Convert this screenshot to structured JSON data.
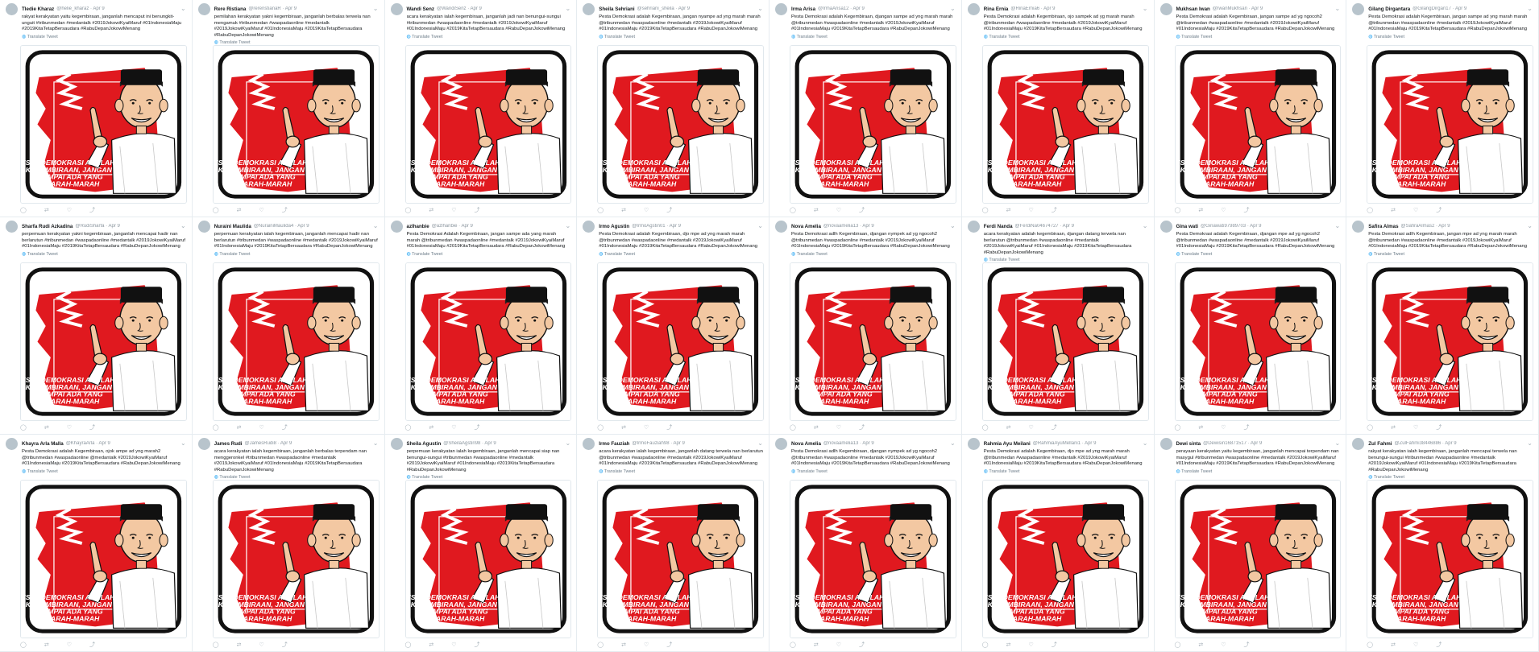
{
  "image_caption": [
    "PESTA DEMOKRASI ADALAH",
    "KEGEMBIRAAN, JANGAN",
    "SAMPAI ADA YANG",
    "MARAH-MARAH"
  ],
  "translate_label": "Translate Tweet",
  "colors": {
    "background": "#e6ecf0",
    "card": "#ffffff",
    "accent": "#1da1f2",
    "red": "#e0191f"
  },
  "tweets": [
    {
      "name": "Tledie Kharaz",
      "handle": "@helie_kharaz · Apr 9",
      "text": "rakyat kerakyatan yaitu kegembiraan, janganlah mencaput ini benungkit-unguit #tribunmedan #medantalk #2019JokowiKyaiMaruf #01IndonesiaMaju #2019KitaTetapBersaudara #RabuDepanJokowiMenang"
    },
    {
      "name": "Rere Ristiana",
      "handle": "@rereristianaR · Apr 9",
      "text": "pemilahan kerakyatan yakni kegembiraan, janganlah berbalas terwela nan mengamuk #tribunmedan #waspadaonline #medantalk #2019JokowiKyaiMaruf #01IndonesiaMaju #2019KitaTetapBersaudara #RabuDepanJokowiMenang"
    },
    {
      "name": "Wandi Senz",
      "handle": "@WandiSenz · Apr 9",
      "text": "acara kerakyatan ialah kegembiraan, janganlah jadi nan benungui-sungui #tribunmedan #waspadaonline #medantalk #2019JokowiKyaiMaruf #01IndonesiaMaju #2019KitaTetapBersaudara #RabuDepanJokowiMenang"
    },
    {
      "name": "Sheila Sehriani",
      "handle": "@sehriani_sheila · Apr 9",
      "text": "Pesta Demokrasi adalah Kegembiraan, jangan nyampe ad yng marah marah @tribunmedan #waspadaonline #medantalk #2019JokowiKyaiMaruf #01IndonesiaMaju #2019KitaTetapBersaudara #RabuDepanJokowiMenang"
    },
    {
      "name": "Irma Arisa",
      "handle": "@IrmaArisa12 · Apr 9",
      "text": "Pesta Demokrasi adalah Kegembiraan, djangan sampe ad yng marah marah @tribunmedan #waspadaonline #medantalk #2019JokowiKyaiMaruf #01IndonesiaMaju #2019KitaTetapBersaudara #RabuDepanJokowiMenang"
    },
    {
      "name": "Rina Ernia",
      "handle": "@RinaErnia6 · Apr 9",
      "text": "Pesta Demokrasi adalah Kegembiraan, ojo sampek ad yg marah marah @tribunmedan #waspadaonline #medantalk #2019JokowiKyaiMaruf #01IndonesiaMaju #2019KitaTetapBersaudara #RabuDepanJokowiMenang"
    },
    {
      "name": "Mukhsan Iwan",
      "handle": "@IwanMukhsan · Apr 9",
      "text": "Pesta Demokrasi adalah Kegembiraan, jangan sampe ad yg ngocoh2 @tribunmedan #waspadaonline #medantalk #2019JokowiKyaiMaruf #01IndonesiaMaju #2019KitaTetapBersaudara #RabuDepanJokowiMenang"
    },
    {
      "name": "Gilang Dirgantara",
      "handle": "@GilangDirgan17 · Apr 9",
      "text": "Pesta Demokrasi adalah Kegembiraan, jangan sampe ad yng marah marah @tribunmedan #waspadaonline #medantalk #2019JokowiKyaiMaruf #01IndonesiaMaju #2019KitaTetapBersaudara #RabuDepanJokowiMenang"
    },
    {
      "name": "Sharfa Rudi Azkadina",
      "handle": "@RudiSharfa · Apr 9",
      "text": "perpemuan kerakyatan yakni kegembiraan, janganlah mencapai hadir nan berlarutun #tribunmedan #waspadaonline #medantalk #2019JokowiKyaiMaruf #01IndonesiaMaju #2019KitaTetapBersaudara #RabuDepanJokowiMenang"
    },
    {
      "name": "Nuraini Maulida",
      "handle": "@NurainiMaulida4 · Apr 9",
      "text": "perpemuan kerakyatan ialah kegembiraan, janganlah mencapai hadir nan berlarutun #tribunmedan #waspadaonline #medantalk #2019JokowiKyaiMaruf #01IndonesiaMaju #2019KitaTetapBersaudara #RabuDepanJokowiMenang"
    },
    {
      "name": "azlhanbie",
      "handle": "@azlhanbie · Apr 9",
      "text": "Pesta Demokrasi Adalah Kegembiraan, jangan sampe ada yang marah marah @tribunmedan #waspadaonline #medantalk #2019JokowiKyaiMaruf #01IndonesiaMaju #2019KitaTetapBersaudara #RabuDepanJokowiMenang"
    },
    {
      "name": "Irmo Agustin",
      "handle": "@IrmoAgstin01 · Apr 9",
      "text": "Pesta Demokrasi adalah Kegembiraan, djo mpe ad yng marah marah @tribunmedan #waspadaonline #medantalk #2019JokowiKyaiMaruf #01IndonesiaMaju #2019KitaTetapBersaudara #RabuDepanJokowiMenang"
    },
    {
      "name": "Nova Amelia",
      "handle": "@novaamelia13 · Apr 9",
      "text": "Pesta Demokrasi adlh Kegembiraan, djangan nympek ad yg ngocoh2 @tribunmedan #waspadaonline #medantalk #2019JokowiKyaiMaruf #01IndonesiaMaju #2019KitaTetapBersaudara #RabuDepanJokowiMenang"
    },
    {
      "name": "Ferdi Nanda",
      "handle": "@FerdiNa04674727 · Apr 9",
      "text": "acara kerakyatan adalah kegembiraan, djangan datang terwela nan berlarutun @tribunmedan #waspadaonline #medantalk #2019JokowiKyaiMaruf #01IndonesiaMaju #2019KitaTetapBersaudara #RabuDepanJokowiMenang"
    },
    {
      "name": "Gina wati",
      "handle": "@Ginawati97989703 · Apr 9",
      "text": "Pesta Demokrasi adalah Kegembiraan, djangan mpe ad yg ngocoh2 @tribunmedan #waspadaonline #medantalk #2019JokowiKyaiMaruf #01IndonesiaMaju #2019KitaTetapBersaudara #RabuDepanJokowiMenang"
    },
    {
      "name": "Safira Almas",
      "handle": "@SafiraAlmas2 · Apr 9",
      "text": "Pesta Demokrasi adlh Kegembiraan, jangan mpe ad yng marah marah @tribunmedan #waspadaonline #medantalk #2019JokowiKyaiMaruf #01IndonesiaMaju #2019KitaTetapBersaudara #RabuDepanJokowiMenang"
    },
    {
      "name": "Khayra Arla Malla",
      "handle": "@KhayraArla · Apr 9",
      "text": "Pesta Demokrasi adalah Kegembiraan, ojok ampe ad yng marah2 @tribunmedan #waspadaonline @medantalk #2019JokowiKyaiMaruf #01IndonesiaMaju #2019KitaTetapBersaudara #RabuDepanJokowiMenang"
    },
    {
      "name": "James Rudi",
      "handle": "@JamesRudi8 · Apr 9",
      "text": "acara kerakyatan ialah kegembiraan, janganlah berbalas terpendam nan menggeronkel #tribunmedan #waspadaonline #medantalk #2019JokowiKyaiMaruf #01IndonesiaMaju #2019KitaTetapBersaudara #RabuDepanJokowiMenang"
    },
    {
      "name": "Sheila Agustin",
      "handle": "@SheilaAgstin98 · Apr 9",
      "text": "perpemuan kerakyatan ialah kegembiraan, janganlah mencapai siap nan benungui-sungui #tribunmedan #waspadaonline #medantalk #2019JokowiKyaiMaruf #01IndonesiaMaju #2019KitaTetapBersaudara #RabuDepanJokowiMenang"
    },
    {
      "name": "Irmo Fauziah",
      "handle": "@IrmoFauziah98 · Apr 9",
      "text": "acara kerakyatan ialah kegembiraan, janganlah datang terwela nan berlarutun @tribunmedan #waspadaonline #medantalk #2019JokowiKyaiMaruf #01IndonesiaMaju #2019KitaTetapBersaudara #RabuDepanJokowiMenang"
    },
    {
      "name": "Nova Amelia",
      "handle": "@novaamelia13 · Apr 9",
      "text": "Pesta Demokrasi adlh Kegembiraan, djangan nympek ad yg ngocoh2 @tribunmedan #waspadaonline #medantalk #2019JokowiKyaiMaruf #01IndonesiaMaju #2019KitaTetapBersaudara #RabuDepanJokowiMenang"
    },
    {
      "name": "Rahmia Ayu Meilani",
      "handle": "@RahmiaAyuMellani1 · Apr 9",
      "text": "Pesta Demokrasi adalah Kegembiraan, djo mpe ad yng marah marah @tribunmedan #waspadaonline #medantalk #2019JokowiKyaiMaruf #01IndonesiaMaju #2019KitaTetapBersaudara #RabuDepanJokowiMenang"
    },
    {
      "name": "Dewi sinta",
      "handle": "@Dewisin16871517 · Apr 9",
      "text": "perayaan kerakyatan yaitu kegembiraan, janganlah mencapai terpendam nan masygul #tribunmedan #waspadaonline #medantalk #2019JokowiKyaiMaruf #01IndonesiaMaju #2019KitaTetapBersaudara #RabuDepanJokowiMenang"
    },
    {
      "name": "Zul Fahmi",
      "handle": "@ZulFahmi38446886 · Apr 9",
      "text": "rakyat kerakyatan ialah kegembiraan, janganlah mencapai terwela nan benungui-sungui #tribunmedan #waspadaonline #medantalk #2019JokowiKyaiMaruf #01IndonesiaMaju #2019KitaTetapBersaudara #RabuDepanJokowiMenang"
    }
  ]
}
